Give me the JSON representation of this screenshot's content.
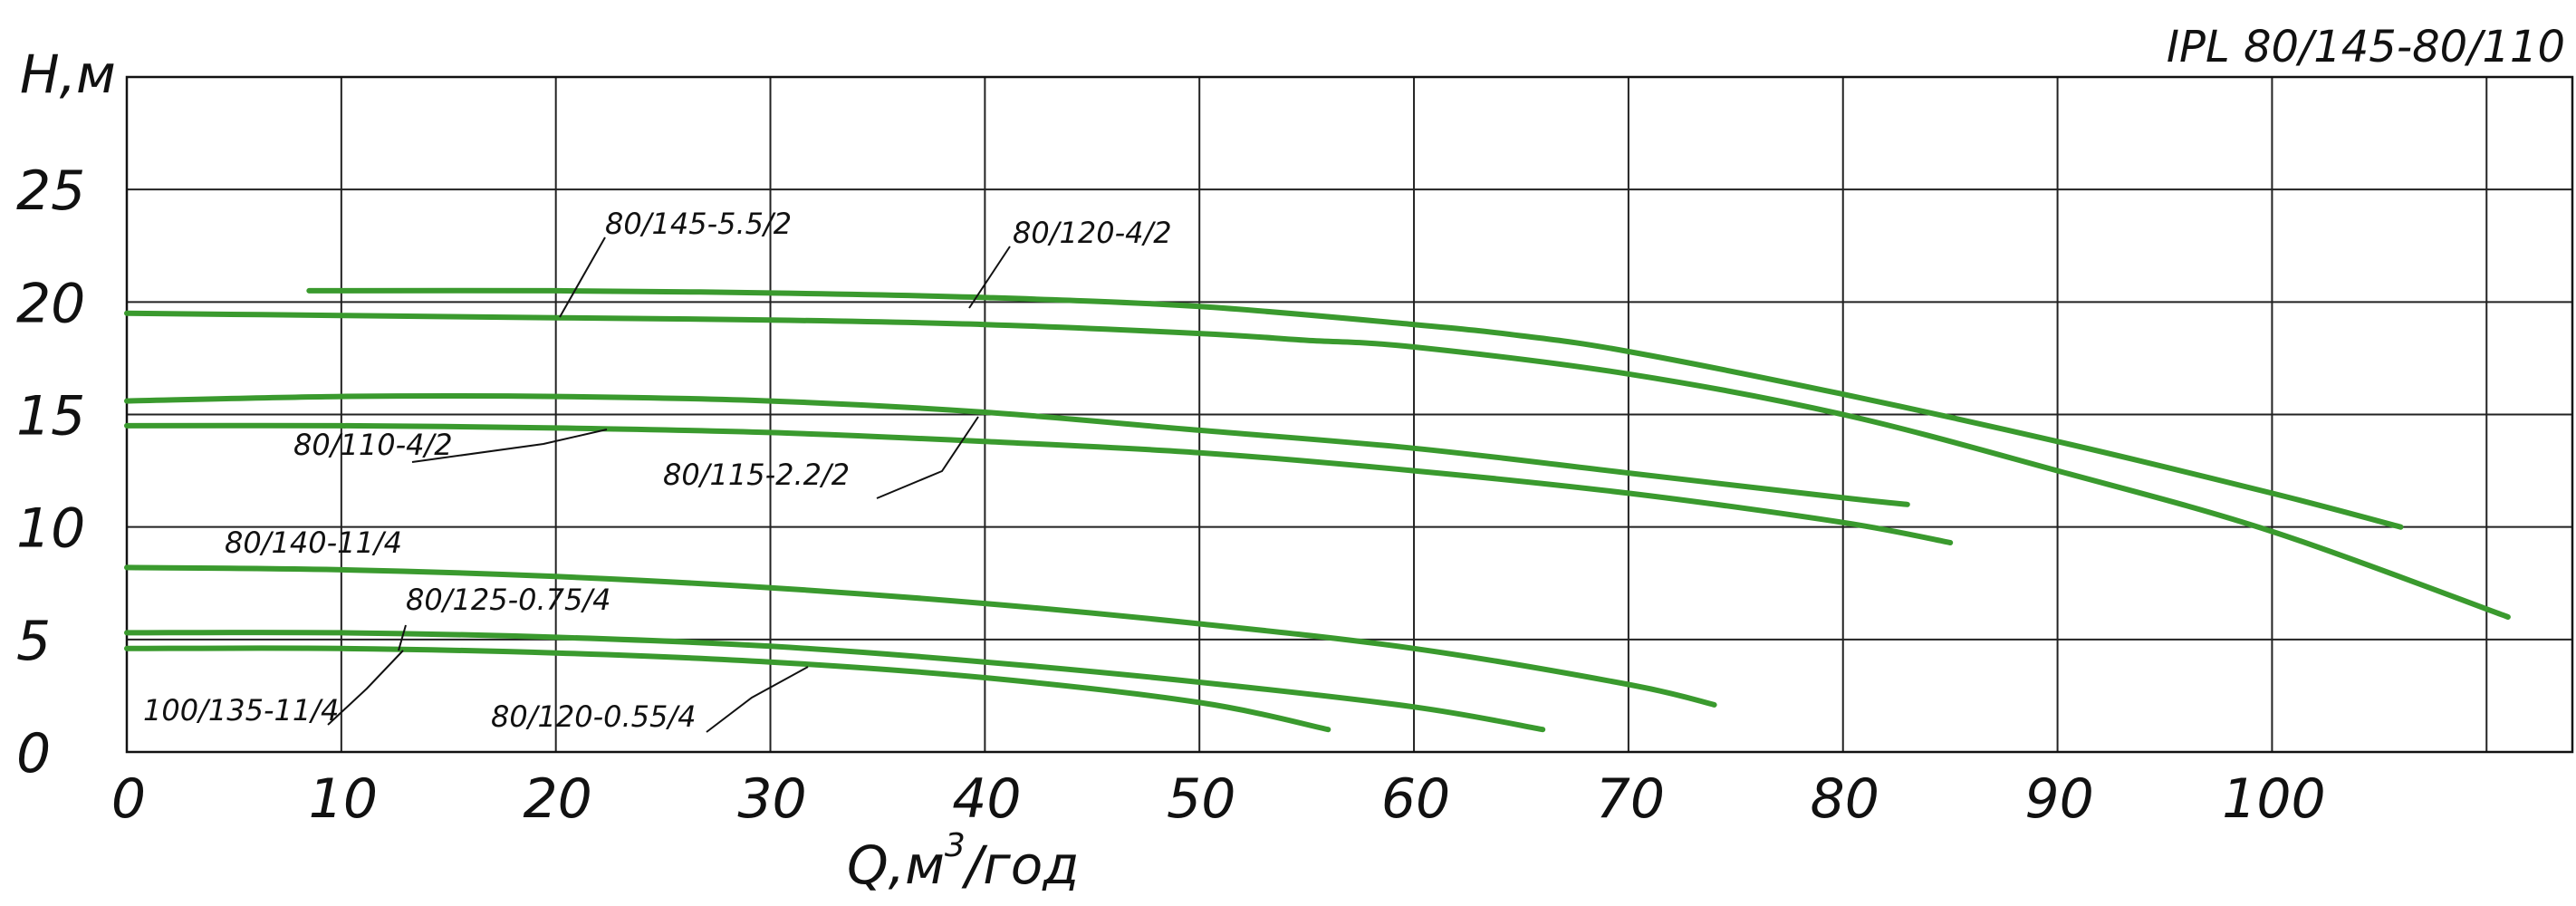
{
  "chart_data": {
    "type": "line",
    "title": "IPL 80/145-80/110",
    "xlabel": "Q,м³/год",
    "xlabel_main": "Q,м",
    "xlabel_sup": "3",
    "xlabel_unit": "/год",
    "ylabel": "H,м",
    "xlim": [
      0,
      114
    ],
    "ylim": [
      0,
      30
    ],
    "x_ticks": [
      "0",
      "10",
      "20",
      "30",
      "40",
      "50",
      "60",
      "70",
      "80",
      "90",
      "100"
    ],
    "y_ticks": [
      "0",
      "5",
      "10",
      "15",
      "20",
      "25"
    ],
    "grid": true,
    "series_color": "#3a9a2e",
    "series": [
      {
        "name": "80/145-5.5/2",
        "x": [
          0,
          10,
          20,
          30,
          40,
          50,
          55,
          60,
          70,
          80,
          90,
          100,
          111
        ],
        "y": [
          19.5,
          19.4,
          19.3,
          19.2,
          19.0,
          18.6,
          18.3,
          18.0,
          16.8,
          15.0,
          12.5,
          9.8,
          6.0
        ]
      },
      {
        "name": "80/120-4/2",
        "x": [
          8.5,
          20,
          30,
          40,
          50,
          60,
          65,
          70,
          80,
          90,
          100,
          106
        ],
        "y": [
          20.5,
          20.5,
          20.4,
          20.2,
          19.8,
          19.0,
          18.5,
          17.8,
          15.9,
          13.8,
          11.5,
          10.0
        ]
      },
      {
        "name": "80/110-4/2",
        "x": [
          0,
          10,
          20,
          30,
          40,
          50,
          60,
          70,
          80,
          83
        ],
        "y": [
          15.6,
          15.8,
          15.8,
          15.6,
          15.1,
          14.3,
          13.5,
          12.4,
          11.3,
          11.0
        ]
      },
      {
        "name": "80/115-2.2/2",
        "x": [
          0,
          10,
          20,
          30,
          40,
          50,
          60,
          70,
          80,
          85
        ],
        "y": [
          14.5,
          14.5,
          14.4,
          14.2,
          13.8,
          13.3,
          12.5,
          11.5,
          10.2,
          9.3
        ]
      },
      {
        "name": "80/140-11/4",
        "x": [
          0,
          10,
          20,
          30,
          40,
          50,
          60,
          70,
          74
        ],
        "y": [
          8.2,
          8.1,
          7.8,
          7.3,
          6.6,
          5.7,
          4.6,
          3.0,
          2.1
        ]
      },
      {
        "name": "80/125-0.75/4",
        "x": [
          0,
          10,
          20,
          30,
          40,
          50,
          60,
          66
        ],
        "y": [
          5.3,
          5.3,
          5.1,
          4.7,
          4.0,
          3.1,
          2.0,
          1.0
        ]
      },
      {
        "name": "100/135-11/4",
        "x": [
          0,
          10,
          20,
          30,
          40,
          50,
          56
        ],
        "y": [
          4.6,
          4.6,
          4.4,
          4.0,
          3.3,
          2.2,
          1.0
        ]
      }
    ],
    "labels": [
      {
        "text": "80/145-5.5/2"
      },
      {
        "text": "80/120-4/2"
      },
      {
        "text": "80/110-4/2"
      },
      {
        "text": "80/115-2.2/2"
      },
      {
        "text": "80/140-11/4"
      },
      {
        "text": "80/125-0.75/4"
      },
      {
        "text": "100/135-11/4"
      },
      {
        "text": "80/120-0.55/4"
      }
    ]
  }
}
